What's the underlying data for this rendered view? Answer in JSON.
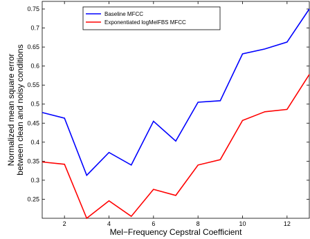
{
  "chart_data": {
    "type": "line",
    "xlabel": "Mel−Frequency Cepstral Coefficient",
    "ylabel_lines": [
      "Normalized mean square error",
      "between clean and noisy conditions"
    ],
    "xlim": [
      1,
      13
    ],
    "ylim": [
      0.2,
      0.77
    ],
    "xticks": [
      2,
      4,
      6,
      8,
      10,
      12
    ],
    "yticks": [
      0.25,
      0.3,
      0.35,
      0.4,
      0.45,
      0.5,
      0.55,
      0.6,
      0.65,
      0.7,
      0.75
    ],
    "x": [
      1,
      2,
      3,
      4,
      5,
      6,
      7,
      8,
      9,
      10,
      11,
      12,
      13
    ],
    "series": [
      {
        "name": "Baseline MFCC",
        "color": "#0000ff",
        "values": [
          0.478,
          0.463,
          0.313,
          0.373,
          0.34,
          0.455,
          0.403,
          0.505,
          0.509,
          0.632,
          0.645,
          0.663,
          0.75
        ]
      },
      {
        "name": "Exponentiated logMelFBS MFCC",
        "color": "#ff0000",
        "values": [
          0.348,
          0.342,
          0.2,
          0.246,
          0.205,
          0.276,
          0.26,
          0.34,
          0.354,
          0.457,
          0.48,
          0.486,
          0.578
        ]
      }
    ],
    "legend_position": "top-left",
    "grid": false
  }
}
